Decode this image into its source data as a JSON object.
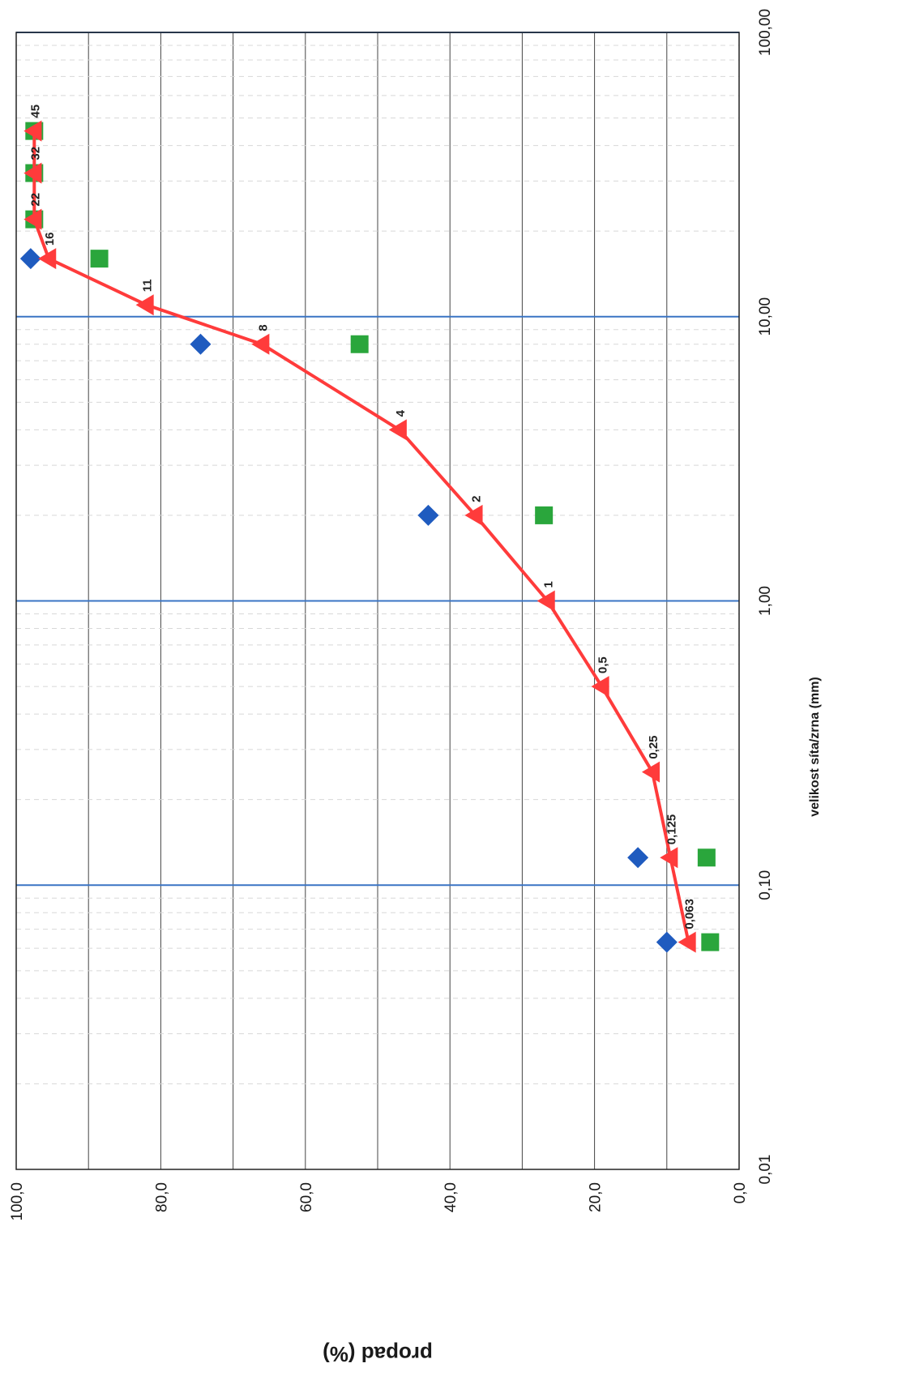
{
  "chart_data": {
    "type": "scatter",
    "orientation": "rotated-90-clockwise",
    "title": "",
    "xlabel": "velikost síta/zrna (mm)",
    "ylabel": "propad (%)",
    "x_scale": "log",
    "xlim": [
      0.01,
      100
    ],
    "ylim": [
      0,
      100
    ],
    "x_tick_labels": [
      "0,01",
      "0,10",
      "1,00",
      "10,00",
      "100,00"
    ],
    "x_ticks": [
      0.01,
      0.1,
      1,
      10,
      100
    ],
    "y_tick_labels": [
      "0,0",
      "20,0",
      "40,0",
      "60,0",
      "80,0",
      "100,0"
    ],
    "y_ticks": [
      0,
      20,
      40,
      60,
      80,
      100
    ],
    "grid": true,
    "legend": "none",
    "series": [
      {
        "marker": "diamond",
        "color": "#1f5bbf",
        "points": [
          {
            "x": 0.063,
            "y": 10
          },
          {
            "x": 0.125,
            "y": 14
          },
          {
            "x": 2,
            "y": 43
          },
          {
            "x": 8,
            "y": 74.5
          },
          {
            "x": 16,
            "y": 98
          }
        ]
      },
      {
        "marker": "square",
        "color": "#2aa63c",
        "points": [
          {
            "x": 0.063,
            "y": 4
          },
          {
            "x": 0.125,
            "y": 4.5
          },
          {
            "x": 2,
            "y": 27
          },
          {
            "x": 8,
            "y": 52.5
          },
          {
            "x": 16,
            "y": 88.5
          },
          {
            "x": 22,
            "y": 97.5
          },
          {
            "x": 32,
            "y": 97.5
          },
          {
            "x": 45,
            "y": 97.5
          }
        ]
      },
      {
        "marker": "triangle",
        "line": true,
        "color": "#ff3b3b",
        "points": [
          {
            "x": 0.063,
            "y": 7,
            "label": "0,063"
          },
          {
            "x": 0.125,
            "y": 9.5,
            "label": "0,125"
          },
          {
            "x": 0.25,
            "y": 12,
            "label": "0,25"
          },
          {
            "x": 0.5,
            "y": 19,
            "label": "0,5"
          },
          {
            "x": 1,
            "y": 26.5,
            "label": "1"
          },
          {
            "x": 2,
            "y": 36.5,
            "label": "2"
          },
          {
            "x": 4,
            "y": 47,
            "label": "4"
          },
          {
            "x": 8,
            "y": 66,
            "label": "8"
          },
          {
            "x": 11,
            "y": 82,
            "label": "11"
          },
          {
            "x": 16,
            "y": 95.5,
            "label": "16"
          },
          {
            "x": 22,
            "y": 97.5,
            "label": "22"
          },
          {
            "x": 32,
            "y": 97.5,
            "label": "32"
          },
          {
            "x": 45,
            "y": 97.5,
            "label": "45"
          }
        ]
      }
    ]
  }
}
